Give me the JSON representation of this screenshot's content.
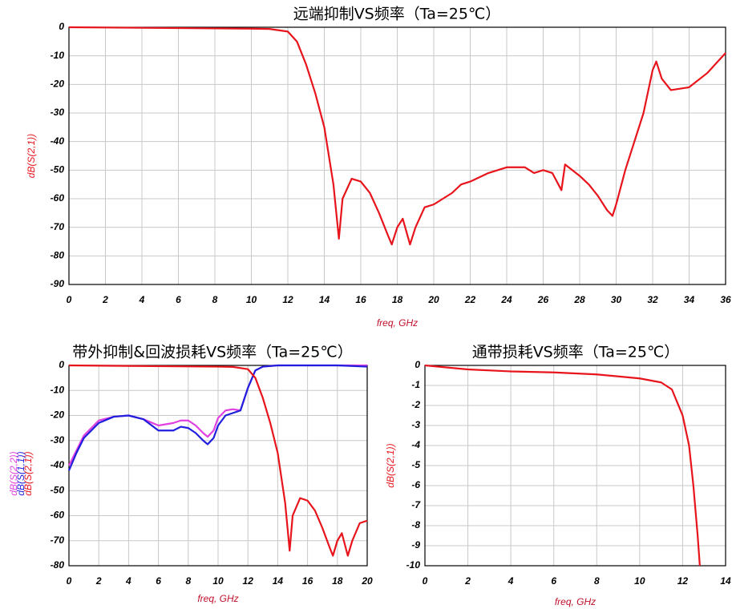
{
  "chart_data": [
    {
      "type": "line",
      "title": "远端抑制VS频率（Ta=25℃）",
      "xlabel": "freq, GHz",
      "ylabel": "dB(S(2,1))",
      "grid": true,
      "xlim": [
        0,
        36
      ],
      "xticks": [
        0,
        2,
        4,
        6,
        8,
        10,
        12,
        14,
        16,
        18,
        20,
        22,
        24,
        26,
        28,
        30,
        32,
        34,
        36
      ],
      "ylim": [
        -90,
        0
      ],
      "yticks": [
        0,
        -10,
        -20,
        -30,
        -40,
        -50,
        -60,
        -70,
        -80,
        -90
      ],
      "series": [
        {
          "name": "dB(S(2,1))",
          "color": "#e8141c",
          "x": [
            0,
            10,
            11,
            12,
            12.5,
            13,
            13.5,
            14,
            14.5,
            14.8,
            15,
            15.5,
            16,
            16.5,
            17,
            17.5,
            17.7,
            18,
            18.3,
            18.7,
            19,
            19.5,
            20,
            20.5,
            21,
            21.5,
            22,
            23,
            24,
            25,
            25.5,
            26,
            26.5,
            27,
            27.2,
            28,
            28.5,
            29,
            29.5,
            29.8,
            30,
            30.5,
            31,
            31.5,
            32,
            32.2,
            32.5,
            33,
            34,
            35,
            36
          ],
          "values": [
            0,
            -0.5,
            -0.6,
            -1.5,
            -5,
            -13,
            -23,
            -35,
            -55,
            -74,
            -60,
            -53,
            -54,
            -58,
            -65,
            -73,
            -76,
            -70,
            -67,
            -76,
            -70,
            -63,
            -62,
            -60,
            -58,
            -55,
            -54,
            -51,
            -49,
            -49,
            -51,
            -50,
            -51,
            -57,
            -48,
            -52,
            -55,
            -59,
            -64,
            -66,
            -62,
            -50,
            -40,
            -30,
            -15,
            -12,
            -18,
            -22,
            -21,
            -16,
            -9
          ]
        }
      ]
    },
    {
      "type": "line",
      "title": "带外抑制&回波损耗VS频率（Ta=25℃）",
      "xlabel": "freq, GHz",
      "grid": true,
      "xlim": [
        0,
        20
      ],
      "xticks": [
        0,
        2,
        4,
        6,
        8,
        10,
        12,
        14,
        16,
        18,
        20
      ],
      "ylim": [
        -80,
        0
      ],
      "yticks": [
        0,
        -10,
        -20,
        -30,
        -40,
        -50,
        -60,
        -70,
        -80
      ],
      "series": [
        {
          "name": "dB(S(2,2))",
          "color": "#e040e0",
          "x": [
            0,
            0.5,
            1,
            2,
            3,
            4,
            5,
            6,
            7,
            7.5,
            8,
            8.5,
            9,
            9.3,
            9.7,
            10,
            10.5,
            11,
            11.5,
            12,
            12.5,
            13,
            14,
            20
          ],
          "values": [
            -40,
            -34,
            -28,
            -22,
            -20.5,
            -20,
            -21.5,
            -24,
            -23,
            -22,
            -22,
            -24,
            -27,
            -28.5,
            -26,
            -21,
            -18,
            -17.5,
            -18,
            -9,
            -2,
            -0.5,
            0,
            0
          ]
        },
        {
          "name": "dB(S(1,1))",
          "color": "#1f1fdd",
          "x": [
            0,
            0.5,
            1,
            2,
            3,
            4,
            5,
            6,
            7,
            7.5,
            8,
            8.5,
            9,
            9.3,
            9.7,
            10,
            10.5,
            11,
            11.5,
            12,
            12.5,
            13,
            14,
            18,
            20
          ],
          "values": [
            -42,
            -35,
            -29,
            -23,
            -20.5,
            -20,
            -21.5,
            -26,
            -26,
            -24.5,
            -25,
            -27,
            -30,
            -31.5,
            -29,
            -24,
            -20,
            -19,
            -18,
            -9,
            -2,
            -0.5,
            0,
            0,
            -0.5
          ]
        },
        {
          "name": "dB(S(2,1))",
          "color": "#e8141c",
          "x": [
            0,
            10,
            11,
            12,
            12.5,
            13,
            13.5,
            14,
            14.5,
            14.8,
            15,
            15.5,
            16,
            16.5,
            17,
            17.5,
            17.7,
            18,
            18.3,
            18.7,
            19,
            19.5,
            20
          ],
          "values": [
            0,
            -0.5,
            -0.6,
            -1.5,
            -5,
            -13,
            -23,
            -35,
            -55,
            -74,
            -60,
            -53,
            -54,
            -58,
            -65,
            -73,
            -76,
            -70,
            -67,
            -76,
            -70,
            -63,
            -62
          ]
        }
      ]
    },
    {
      "type": "line",
      "title": "通带损耗VS频率（Ta=25℃）",
      "xlabel": "freq, GHz",
      "ylabel": "dB(S(2,1))",
      "grid": true,
      "xlim": [
        0,
        14
      ],
      "xticks": [
        0,
        2,
        4,
        6,
        8,
        10,
        12,
        14
      ],
      "ylim": [
        -10,
        0
      ],
      "yticks": [
        0,
        -1,
        -2,
        -3,
        -4,
        -5,
        -6,
        -7,
        -8,
        -9,
        -10
      ],
      "series": [
        {
          "name": "dB(S(2,1))",
          "color": "#e8141c",
          "x": [
            0,
            2,
            4,
            6,
            8,
            10,
            11,
            11.5,
            12,
            12.3,
            12.5,
            12.7,
            12.8
          ],
          "values": [
            0,
            -0.2,
            -0.3,
            -0.35,
            -0.45,
            -0.65,
            -0.85,
            -1.2,
            -2.5,
            -4,
            -6,
            -8.5,
            -10
          ]
        }
      ]
    }
  ]
}
